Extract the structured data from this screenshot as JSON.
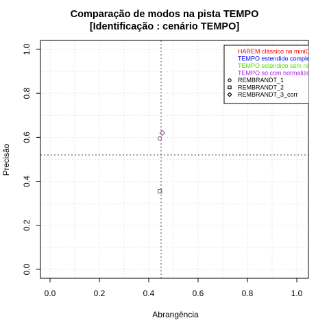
{
  "chart_data": {
    "type": "scatter",
    "title": "Comparação de modos na pista TEMPO",
    "subtitle": "[Identificação : cenário TEMPO]",
    "xlabel": "Abrangência",
    "ylabel": "Precisão",
    "xlim": [
      0.0,
      1.0
    ],
    "ylim": [
      0.0,
      1.0
    ],
    "x_ticks": [
      "0.0",
      "0.2",
      "0.4",
      "0.6",
      "0.8",
      "1.0"
    ],
    "y_ticks": [
      "0.0",
      "0.2",
      "0.4",
      "0.6",
      "0.8",
      "1.0"
    ],
    "grid": true,
    "reference_lines": {
      "x": 0.45,
      "y": 0.52
    },
    "legend_placement": "top-right",
    "legend_modes": [
      {
        "label": "HAREM clássico na miniC",
        "color": "#ff0000"
      },
      {
        "label": "TEMPO estendido comple",
        "color": "#0000ff"
      },
      {
        "label": "TEMPO estendido sem no",
        "color": "#55dd00"
      },
      {
        "label": "TEMPO só com normaliza",
        "color": "#aa22dd"
      }
    ],
    "legend_systems": [
      {
        "label": "REMBRANDT_1",
        "marker": "circle"
      },
      {
        "label": "REMBRANDT_2",
        "marker": "square"
      },
      {
        "label": "REMBRANDT_3_corr",
        "marker": "diamond"
      }
    ],
    "points": [
      {
        "system": "REMBRANDT_1",
        "marker": "circle",
        "x": 0.445,
        "y": 0.595,
        "color": "#a060a0"
      },
      {
        "system": "REMBRANDT_2",
        "marker": "square",
        "x": 0.445,
        "y": 0.355,
        "color": "#a060a0"
      },
      {
        "system": "REMBRANDT_3_corr",
        "marker": "diamond",
        "x": 0.455,
        "y": 0.62,
        "color": "#a060a0"
      }
    ]
  }
}
